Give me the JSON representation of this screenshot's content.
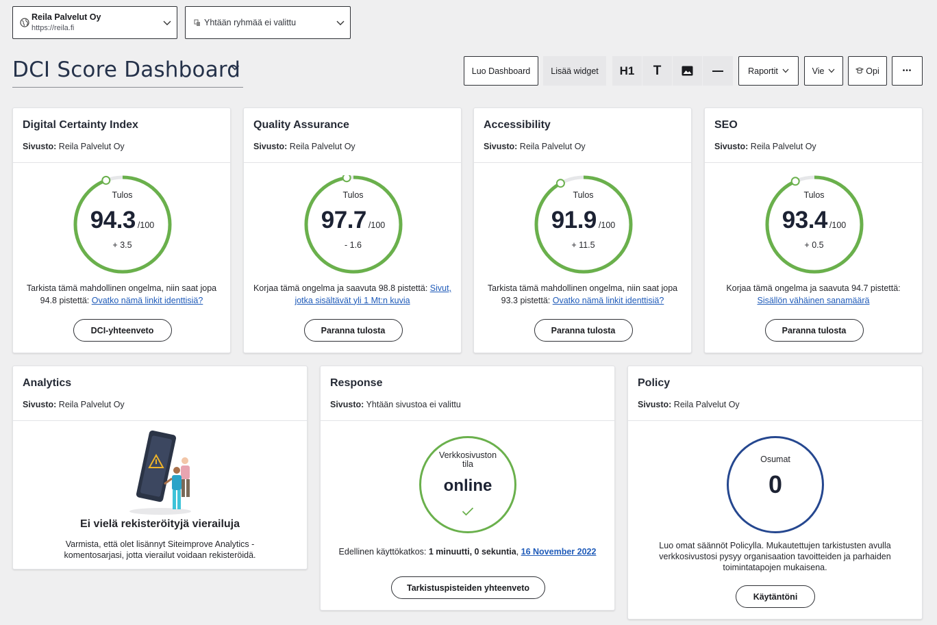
{
  "site_select": {
    "name": "Reila Palvelut Oy",
    "url": "https://reila.fi"
  },
  "group_select": {
    "text": "Yhtään ryhmää ei valittu"
  },
  "page_title": "DCI Score Dashboard",
  "toolbar": {
    "create": "Luo Dashboard",
    "add_widget": "Lisää widget",
    "h1": "H1",
    "text": "T",
    "reports": "Raportit",
    "export": "Vie",
    "learn": "Opi",
    "more": "•••"
  },
  "site_label": "Sivusto:",
  "cards": [
    {
      "title": "Digital Certainty Index",
      "site": "Reila Palvelut Oy",
      "score_label": "Tulos",
      "score": "94.3",
      "max": "/100",
      "score_fraction": 0.943,
      "delta": "+ 3.5",
      "text": "Tarkista tämä mahdollinen ongelma, niin saat jopa 94.8 pistettä: ",
      "link": "Ovatko nämä linkit identtisiä?",
      "button": "DCI-yhteenveto"
    },
    {
      "title": "Quality Assurance",
      "site": "Reila Palvelut Oy",
      "score_label": "Tulos",
      "score": "97.7",
      "max": "/100",
      "score_fraction": 0.977,
      "delta": "- 1.6",
      "text": "Korjaa tämä ongelma ja saavuta 98.8 pistettä: ",
      "link": "Sivut, jotka sisältävät yli 1 Mt:n kuvia",
      "button": "Paranna tulosta"
    },
    {
      "title": "Accessibility",
      "site": "Reila Palvelut Oy",
      "score_label": "Tulos",
      "score": "91.9",
      "max": "/100",
      "score_fraction": 0.919,
      "delta": "+ 11.5",
      "text": "Tarkista tämä mahdollinen ongelma, niin saat jopa 93.3 pistettä: ",
      "link": "Ovatko nämä linkit identtisiä?",
      "button": "Paranna tulosta"
    },
    {
      "title": "SEO",
      "site": "Reila Palvelut Oy",
      "score_label": "Tulos",
      "score": "93.4",
      "max": "/100",
      "score_fraction": 0.934,
      "delta": "+ 0.5",
      "text": "Korjaa tämä ongelma ja saavuta 94.7 pistettä: ",
      "link": "Sisällön vähäinen sanamäärä",
      "button": "Paranna tulosta"
    }
  ],
  "analytics": {
    "title": "Analytics",
    "site": "Reila Palvelut Oy",
    "empty_title": "Ei vielä rekisteröityjä vierailuja",
    "empty_text": "Varmista, että olet lisännyt Siteimprove Analytics -komentosarjasi, jotta vierailut voidaan rekisteröidä."
  },
  "response": {
    "title": "Response",
    "site": "Yhtään sivustoa ei valittu",
    "status_label": "Verkkosivuston tila",
    "status": "online",
    "downtime_prefix": "Edellinen käyttökatkos: ",
    "downtime_duration": "1 minuutti, 0 sekuntia",
    "downtime_sep": ", ",
    "downtime_date": "16 November 2022",
    "button": "Tarkistuspisteiden yhteenveto"
  },
  "policy": {
    "title": "Policy",
    "site": "Reila Palvelut Oy",
    "hits_label": "Osumat",
    "hits": "0",
    "text": "Luo omat säännöt Policylla. Mukautettujen tarkistusten avulla verkkosivustosi pysyy organisaation tavoitteiden ja parhaiden toimintatapojen mukaisena.",
    "button": "Käytäntöni"
  },
  "colors": {
    "gauge_green": "#6ab04c",
    "gauge_track": "#e6e7e9",
    "policy_blue": "#25478f",
    "link_blue": "#1f5bb9",
    "title_navy": "#25324a"
  }
}
